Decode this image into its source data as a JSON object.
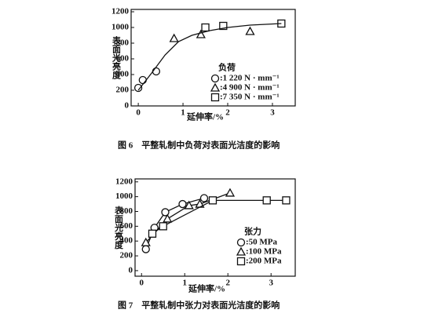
{
  "chart_data": [
    {
      "type": "scatter",
      "y_label": "表面光亮度",
      "x_label": "延伸率/%",
      "caption": "图 6　平整轧制中负荷对表面光洁度的影响",
      "xlim": [
        -0.16,
        3.51
      ],
      "ylim": [
        0,
        1230
      ],
      "xticks": [
        0,
        1,
        2,
        3
      ],
      "yticks": [
        0,
        200,
        400,
        600,
        800,
        1000,
        1200
      ],
      "legend_title": "负荷",
      "legend": "lower right",
      "series": [
        {
          "name": ":1 220 N · mm⁻¹",
          "marker": "circle",
          "color": "#111",
          "x": [
            0.0,
            0.1,
            0.4
          ],
          "values": [
            230,
            330,
            440
          ]
        },
        {
          "name": ":4 900 N · mm⁻¹",
          "marker": "triangle",
          "color": "#111",
          "x": [
            0.8,
            1.4,
            2.5
          ],
          "values": [
            860,
            910,
            950
          ]
        },
        {
          "name": ":7 350 N · mm⁻¹",
          "marker": "square",
          "color": "#111",
          "x": [
            1.5,
            1.9,
            3.2
          ],
          "values": [
            1000,
            1020,
            1050
          ]
        },
        {
          "marker": "none",
          "line": true,
          "color": "#111",
          "x": [
            0,
            0.3,
            0.6,
            0.9,
            1.2,
            1.6,
            2,
            2.5,
            3.2
          ],
          "values": [
            200,
            420,
            650,
            820,
            900,
            960,
            1000,
            1030,
            1050
          ]
        }
      ]
    },
    {
      "type": "scatter",
      "y_label": "表面光亮度",
      "x_label": "延伸率/%",
      "caption": "图 7　平整轧制中张力对表面光洁度的影响",
      "xlim": [
        -0.15,
        3.56
      ],
      "ylim": [
        -75,
        1240
      ],
      "xticks": [
        0,
        1,
        2,
        3
      ],
      "yticks": [
        0,
        200,
        400,
        600,
        800,
        1000,
        1200
      ],
      "legend_title": "张力",
      "legend": "lower right",
      "series": [
        {
          "name": ":50 MPa",
          "marker": "circle",
          "line": true,
          "color": "#111",
          "x": [
            0.1,
            0.3,
            0.55,
            0.95,
            1.45
          ],
          "values": [
            290,
            580,
            790,
            900,
            980
          ]
        },
        {
          "name": ":100 MPa",
          "marker": "triangle",
          "line": true,
          "color": "#111",
          "x": [
            0.1,
            0.6,
            1.1,
            1.35,
            2.05
          ],
          "values": [
            380,
            700,
            880,
            900,
            1050
          ]
        },
        {
          "name": ":200 MPa",
          "marker": "square",
          "line": true,
          "color": "#111",
          "x": [
            0.25,
            0.5,
            1.65,
            2.9,
            3.35
          ],
          "values": [
            500,
            600,
            950,
            950,
            950
          ]
        }
      ]
    }
  ]
}
